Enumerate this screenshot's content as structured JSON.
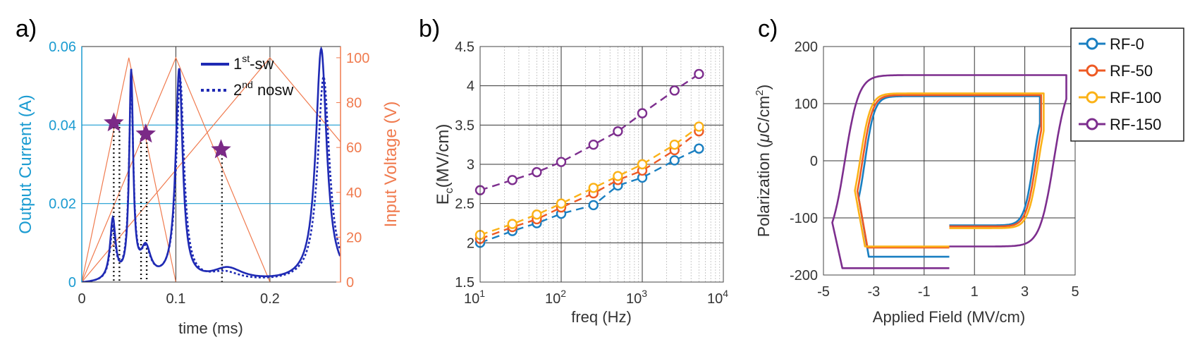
{
  "chart_data": [
    {
      "type": "line",
      "panel_label": "a)",
      "xlabel": "time (ms)",
      "ylabel_left": "Output Current (A)",
      "ylabel_right": "Input Voltage (V)",
      "xlim": [
        0,
        0.275
      ],
      "ylim_left": [
        0,
        0.06
      ],
      "ylim_right": [
        0,
        105
      ],
      "xticks": [
        0,
        0.1,
        0.2
      ],
      "xtick_labels": [
        "0",
        "0.1",
        "0.2"
      ],
      "yticks_left": [
        0,
        0.02,
        0.04,
        0.06
      ],
      "ytick_labels_left": [
        "0",
        "0.02",
        "0.04",
        "0.06"
      ],
      "yticks_right": [
        0,
        20,
        40,
        60,
        80,
        100
      ],
      "ytick_labels_right": [
        "0",
        "20",
        "40",
        "60",
        "80",
        "100"
      ],
      "colors": {
        "left_axis": "#1a9bd1",
        "right_axis": "#f07b4f",
        "current": "#1f2ab4",
        "star": "#7b2a87",
        "voltage": "#f07b4f"
      },
      "legend": [
        {
          "name": "1st-sw",
          "text_main": "1",
          "text_sup": "st",
          "text_tail": "-sw",
          "style": "solid"
        },
        {
          "name": "2nd nosw",
          "text_main": "2",
          "text_sup": "nd",
          "text_tail": " nosw",
          "style": "dotted"
        }
      ],
      "voltage_triangles": [
        {
          "peak_t": 0.05,
          "end_t": 0.1,
          "peak_v": 100
        },
        {
          "peak_t": 0.1,
          "end_t": 0.2,
          "peak_v": 100
        },
        {
          "peak_t": 0.2,
          "end_t": 0.4,
          "peak_v": 100
        }
      ],
      "current_peaks": [
        {
          "t": 0.033,
          "i": 0.0155,
          "w": 0.0035
        },
        {
          "t": 0.0525,
          "i": 0.0525,
          "w": 0.0025
        },
        {
          "t": 0.068,
          "i": 0.0078,
          "w": 0.0065
        },
        {
          "t": 0.1035,
          "i": 0.0538,
          "w": 0.0045
        },
        {
          "t": 0.155,
          "i": 0.0033,
          "w": 0.02
        },
        {
          "t": 0.2545,
          "i": 0.0593,
          "w": 0.007
        }
      ],
      "nosw_peaks": [
        {
          "t": 0.033,
          "i": 0.013,
          "w": 0.0036
        },
        {
          "t": 0.0525,
          "i": 0.049,
          "w": 0.0028
        },
        {
          "t": 0.068,
          "i": 0.007,
          "w": 0.0065
        },
        {
          "t": 0.1045,
          "i": 0.0515,
          "w": 0.005
        },
        {
          "t": 0.152,
          "i": 0.0022,
          "w": 0.02
        },
        {
          "t": 0.257,
          "i": 0.0522,
          "w": 0.0075
        }
      ],
      "stars": [
        {
          "t": 0.034,
          "v": 71
        },
        {
          "t": 0.068,
          "v": 66
        },
        {
          "t": 0.148,
          "v": 59
        }
      ],
      "drop_lines_t": [
        0.034,
        0.04,
        0.063,
        0.069,
        0.149
      ]
    },
    {
      "type": "scatter",
      "panel_label": "b)",
      "xlabel": "freq (Hz)",
      "ylabel_main": "E",
      "ylabel_sub": "c",
      "ylabel_tail": "(MV/cm)",
      "xscale": "log",
      "xlim": [
        10,
        10000
      ],
      "ylim": [
        1.5,
        4.5
      ],
      "xtick_labels": [
        {
          "base": "10",
          "exp": "1"
        },
        {
          "base": "10",
          "exp": "2"
        },
        {
          "base": "10",
          "exp": "3"
        },
        {
          "base": "10",
          "exp": "4"
        }
      ],
      "yticks": [
        1.5,
        2,
        2.5,
        3,
        3.5,
        4,
        4.5
      ],
      "ytick_labels": [
        "1.5",
        "2",
        "2.5",
        "3",
        "3.5",
        "4",
        "4.5"
      ],
      "x": [
        10,
        25,
        50,
        100,
        250,
        500,
        1000,
        2500,
        5000
      ],
      "series": [
        {
          "name": "RF-0",
          "color": "#1a7fc1",
          "values": [
            2.0,
            2.15,
            2.25,
            2.37,
            2.48,
            2.73,
            2.83,
            3.05,
            3.2
          ]
        },
        {
          "name": "RF-50",
          "color": "#ee5a24",
          "values": [
            2.05,
            2.2,
            2.3,
            2.45,
            2.63,
            2.8,
            2.92,
            3.18,
            3.42
          ]
        },
        {
          "name": "RF-100",
          "color": "#fbb217",
          "values": [
            2.1,
            2.24,
            2.36,
            2.5,
            2.7,
            2.85,
            3.0,
            3.25,
            3.48
          ]
        },
        {
          "name": "RF-150",
          "color": "#7d2e8e",
          "values": [
            2.67,
            2.8,
            2.9,
            3.03,
            3.25,
            3.42,
            3.65,
            3.94,
            4.15
          ]
        }
      ]
    },
    {
      "type": "line",
      "panel_label": "c)",
      "xlabel": "Applied Field (MV/cm)",
      "ylabel_main": "Polarization (",
      "ylabel_mu": "μ",
      "ylabel_unit": "C/cm",
      "ylabel_sup": "2",
      "ylabel_close": ")",
      "xlim": [
        -5,
        5
      ],
      "ylim": [
        -200,
        200
      ],
      "xticks": [
        -5,
        -3,
        -1,
        1,
        3,
        5
      ],
      "xtick_labels": [
        "-5",
        "-3",
        "-1",
        "1",
        "3",
        "5"
      ],
      "yticks": [
        -200,
        -100,
        0,
        100,
        200
      ],
      "ytick_labels": [
        "-200",
        "-100",
        "0",
        "100",
        "200"
      ],
      "legend_position": "top-right",
      "series": [
        {
          "name": "RF-0",
          "color": "#1a7fc1",
          "ps": 113,
          "ec": 3.35,
          "slope": 0.38,
          "xmax": 3.6,
          "pr": 168,
          "pend": 118
        },
        {
          "name": "RF-50",
          "color": "#ee5a24",
          "ps": 115,
          "ec": 3.45,
          "slope": 0.4,
          "xmax": 3.65,
          "pr": 152,
          "pend": 128
        },
        {
          "name": "RF-100",
          "color": "#fbb217",
          "ps": 118,
          "ec": 3.55,
          "slope": 0.42,
          "xmax": 3.75,
          "pr": 150,
          "pend": 140
        },
        {
          "name": "RF-150",
          "color": "#7d2e8e",
          "ps": 150,
          "ec": 4.15,
          "slope": 0.55,
          "xmax": 4.65,
          "pr": 188,
          "pend": 185
        }
      ]
    }
  ]
}
